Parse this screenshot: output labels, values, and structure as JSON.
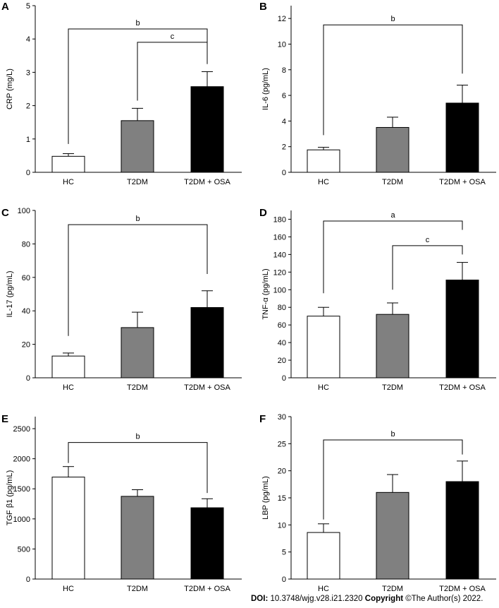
{
  "chart_data": [
    {
      "panel": "A",
      "type": "bar",
      "categories": [
        "HC",
        "T2DM",
        "T2DM + OSA"
      ],
      "values": [
        0.48,
        1.55,
        2.57
      ],
      "errors": [
        0.08,
        0.37,
        0.45
      ],
      "colors": [
        "#ffffff",
        "#808080",
        "#000000"
      ],
      "ylabel": "CRP (mg/L)",
      "ylim": [
        0,
        5
      ],
      "yticks": [
        0,
        1,
        2,
        3,
        4,
        5
      ],
      "ytick_labels": [
        "0",
        "1",
        "2",
        "3",
        "4",
        "5"
      ],
      "brackets": [
        {
          "from": 0,
          "to": 2,
          "label": "b",
          "y": 4.3,
          "drop_from": 0.85,
          "drop_to": 3.25
        },
        {
          "from": 1,
          "to": 2,
          "label": "c",
          "y": 3.9,
          "drop_from": 2.15,
          "drop_to": 3.25
        }
      ]
    },
    {
      "panel": "B",
      "type": "bar",
      "categories": [
        "HC",
        "T2DM",
        "T2DM + OSA"
      ],
      "values": [
        1.75,
        3.5,
        5.4
      ],
      "errors": [
        0.2,
        0.8,
        1.4
      ],
      "colors": [
        "#ffffff",
        "#808080",
        "#000000"
      ],
      "ylabel": "IL-6 (pg/mL)",
      "ylim": [
        0,
        13
      ],
      "yticks": [
        0,
        2,
        4,
        6,
        8,
        10,
        12
      ],
      "ytick_labels": [
        "0",
        "2",
        "4",
        "6",
        "8",
        "10",
        "12"
      ],
      "brackets": [
        {
          "from": 0,
          "to": 2,
          "label": "b",
          "y": 11.5,
          "drop_from": 2.9,
          "drop_to": 7.7
        }
      ]
    },
    {
      "panel": "C",
      "type": "bar",
      "categories": [
        "HC",
        "T2DM",
        "T2DM + OSA"
      ],
      "values": [
        13,
        30,
        42
      ],
      "errors": [
        1.8,
        9.2,
        10
      ],
      "colors": [
        "#ffffff",
        "#808080",
        "#000000"
      ],
      "ylabel": "IL-17 (pg/mL)",
      "ylim": [
        0,
        100
      ],
      "yticks": [
        0,
        20,
        40,
        60,
        80,
        100
      ],
      "ytick_labels": [
        "0",
        "20",
        "40",
        "60",
        "80",
        "100"
      ],
      "brackets": [
        {
          "from": 0,
          "to": 2,
          "label": "b",
          "y": 91.5,
          "drop_from": 25,
          "drop_to": 62
        }
      ]
    },
    {
      "panel": "D",
      "type": "bar",
      "categories": [
        "HC",
        "T2DM",
        "T2DM + OSA"
      ],
      "values": [
        70,
        72,
        111
      ],
      "errors": [
        10,
        13,
        20
      ],
      "colors": [
        "#ffffff",
        "#808080",
        "#000000"
      ],
      "ylabel": "TNF-α (pg/mL)",
      "ylim": [
        0,
        190
      ],
      "yticks": [
        0,
        20,
        40,
        60,
        80,
        100,
        120,
        140,
        160,
        180
      ],
      "ytick_labels": [
        "0",
        "20",
        "40",
        "60",
        "80",
        "100",
        "120",
        "140",
        "160",
        "180"
      ],
      "brackets": [
        {
          "from": 0,
          "to": 2,
          "label": "a",
          "y": 178,
          "drop_from": 96,
          "drop_to": 168
        },
        {
          "from": 1,
          "to": 2,
          "label": "c",
          "y": 150,
          "drop_from": 100,
          "drop_to": 140
        }
      ]
    },
    {
      "panel": "E",
      "type": "bar",
      "categories": [
        "HC",
        "T2DM",
        "T2DM + OSA"
      ],
      "values": [
        1695,
        1375,
        1185
      ],
      "errors": [
        175,
        110,
        150
      ],
      "colors": [
        "#ffffff",
        "#808080",
        "#000000"
      ],
      "ylabel": "TGF β1 (pg/mL)",
      "ylim": [
        0,
        2700
      ],
      "yticks": [
        0,
        500,
        1000,
        1500,
        2000,
        2500
      ],
      "ytick_labels": [
        "0",
        "500",
        "1000",
        "1500",
        "2000",
        "2500"
      ],
      "brackets": [
        {
          "from": 0,
          "to": 2,
          "label": "b",
          "y": 2270,
          "drop_from": 1930,
          "drop_to": 1430
        }
      ]
    },
    {
      "panel": "F",
      "type": "bar",
      "categories": [
        "HC",
        "T2DM",
        "T2DM + OSA"
      ],
      "values": [
        8.6,
        16,
        18
      ],
      "errors": [
        1.6,
        3.3,
        3.8
      ],
      "colors": [
        "#ffffff",
        "#808080",
        "#000000"
      ],
      "ylabel": "LBP (pg/mL)",
      "ylim": [
        0,
        30
      ],
      "yticks": [
        0,
        5,
        10,
        15,
        20,
        25,
        30
      ],
      "ytick_labels": [
        "0",
        "5",
        "10",
        "15",
        "20",
        "25",
        "30"
      ],
      "brackets": [
        {
          "from": 0,
          "to": 2,
          "label": "b",
          "y": 25.7,
          "drop_from": 11,
          "drop_to": 23
        }
      ]
    }
  ],
  "footer": {
    "doi_label": "DOI:",
    "doi_value": "10.3748/wjg.v28.i21.2320",
    "copyright_label": "Copyright",
    "copyright_value": "©The Author(s) 2022."
  }
}
